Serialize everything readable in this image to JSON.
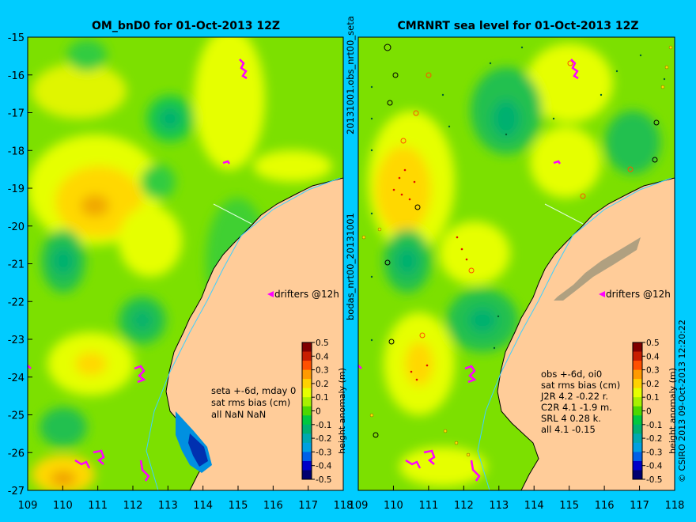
{
  "left_panel": {
    "title": "OM_bnD0 for 01-Oct-2013 12Z",
    "y_ticks": [
      "-15",
      "-16",
      "-17",
      "-18",
      "-19",
      "-20",
      "-21",
      "-22",
      "-23",
      "-24",
      "-25",
      "-26",
      "-27"
    ],
    "x_ticks": [
      "109",
      "110",
      "111",
      "112",
      "113",
      "114",
      "115",
      "116",
      "117",
      "118"
    ],
    "drifters_label": "drifters @12h",
    "stats": [
      "seta +-6d, mday 0",
      "sat rms bias (cm)",
      "all NaN NaN"
    ],
    "side_label": "bodas_nrt00_20131001"
  },
  "right_panel": {
    "title": "CMRNRT sea level  for 01-Oct-2013 12Z",
    "x_ticks": [
      "109",
      "110",
      "111",
      "112",
      "113",
      "114",
      "115",
      "116",
      "117",
      "118"
    ],
    "drifters_label": "drifters @12h",
    "stats": [
      "obs +-6d, oi0",
      "sat rms bias (cm)",
      "J2R   4.2 -0.22 r.",
      "C2R   4.1 -1.9 m.",
      "SRL   4 0.28 k.",
      "all   4.1 -0.15"
    ],
    "side_label": "20131001.obs_nrt00_seta",
    "credit": "© CSIRO 2013   09-Oct-2013 12:20:22"
  },
  "colorbar": {
    "label": "height anomaly (m)",
    "ticks": [
      "0.5",
      "0.4",
      "0.3",
      "0.2",
      "0.1",
      "0",
      "-0.1",
      "-0.2",
      "-0.3",
      "-0.4",
      "-0.5"
    ],
    "colors": [
      "#800000",
      "#C81E00",
      "#FF5000",
      "#FF9A00",
      "#FFD200",
      "#E6FF00",
      "#A8F000",
      "#4CD800",
      "#00C840",
      "#00B070",
      "#00A8B0",
      "#00A0E0",
      "#0060E8",
      "#0000C8",
      "#000070"
    ]
  }
}
